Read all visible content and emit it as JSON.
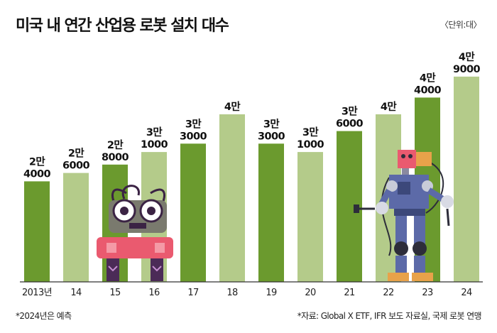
{
  "header": {
    "title": "미국 내 연간 산업용 로봇 설치 대수",
    "unit": "〈단위:대〉"
  },
  "footer": {
    "note": "*2024년은 예측",
    "source": "*자료: Global X ETF, IFR 보도 자료실, 국제 로봇 연맹"
  },
  "colors": {
    "dark_green": "#6b9a2e",
    "light_green": "#b4cb8a",
    "axis": "#333333"
  },
  "chart_data": {
    "type": "bar",
    "title": "미국 내 연간 산업용 로봇 설치 대수",
    "unit": "〈단위:대〉",
    "categories": [
      "2013년",
      "14",
      "15",
      "16",
      "17",
      "18",
      "19",
      "20",
      "21",
      "22",
      "23",
      "24"
    ],
    "values": [
      24000,
      26000,
      28000,
      31000,
      33000,
      40000,
      33000,
      31000,
      36000,
      40000,
      44000,
      49000
    ],
    "value_labels": [
      [
        "2만",
        "4000"
      ],
      [
        "2만",
        "6000"
      ],
      [
        "2만",
        "8000"
      ],
      [
        "3만",
        "1000"
      ],
      [
        "3만",
        "3000"
      ],
      [
        "4만"
      ],
      [
        "3만",
        "3000"
      ],
      [
        "3만",
        "1000"
      ],
      [
        "3만",
        "6000"
      ],
      [
        "4만"
      ],
      [
        "4만",
        "4000"
      ],
      [
        "4만",
        "9000"
      ]
    ],
    "bar_colors": [
      "dark",
      "light",
      "dark",
      "light",
      "dark",
      "light",
      "dark",
      "light",
      "dark",
      "light",
      "dark",
      "light"
    ],
    "ylim": [
      0,
      50000
    ],
    "grid": false,
    "legend": "none"
  }
}
